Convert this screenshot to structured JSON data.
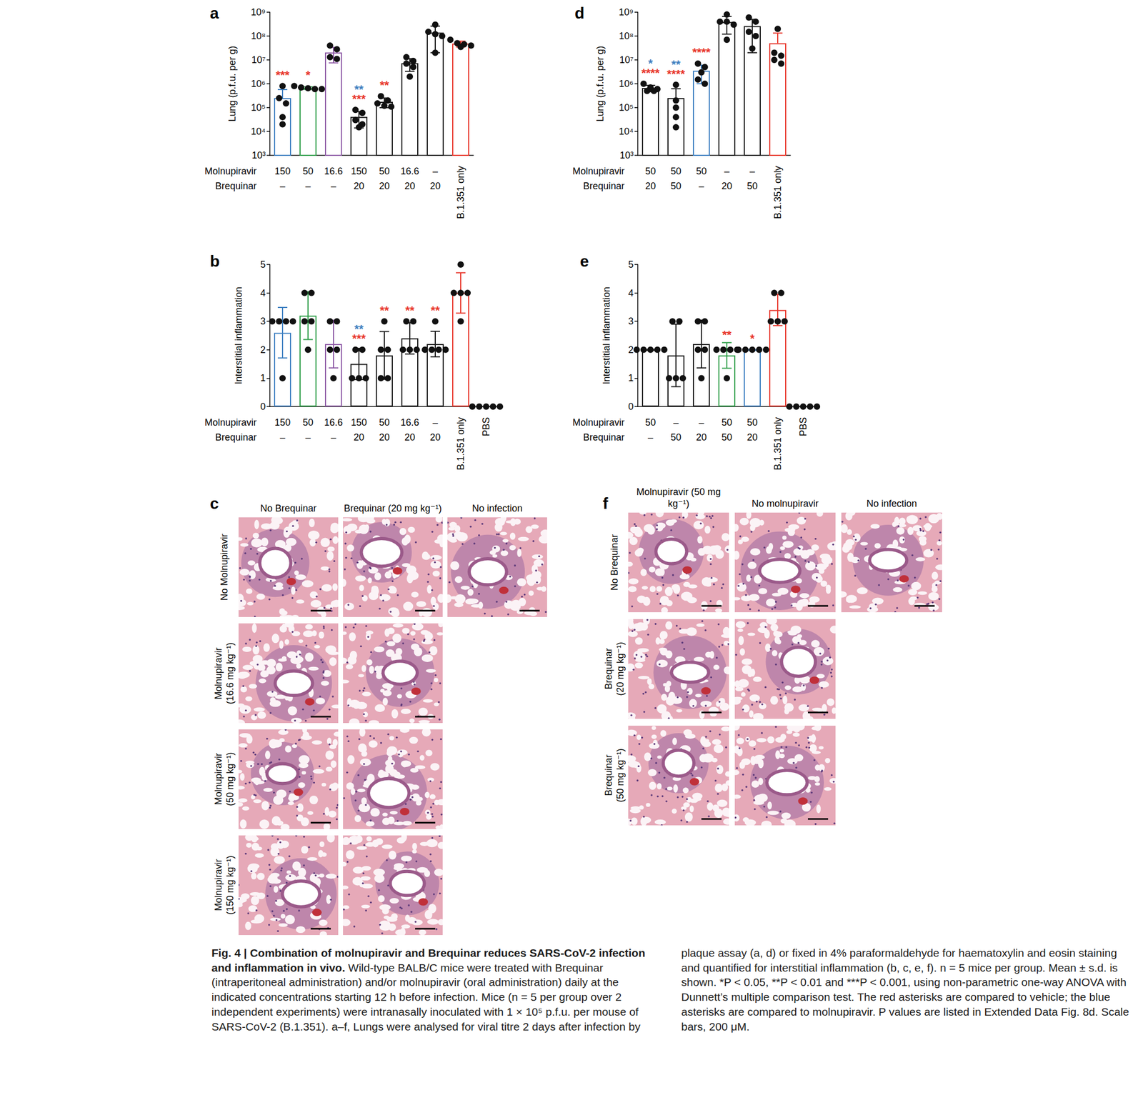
{
  "chart_data": [
    {
      "panel": "a",
      "type": "bar",
      "ylabel": "Lung (p.f.u. per g)",
      "log": "y",
      "ylim": [
        1000,
        1000000000
      ],
      "yticks": [
        {
          "value": 1000,
          "label": "10³"
        },
        {
          "value": 10000,
          "label": "10⁴"
        },
        {
          "value": 100000,
          "label": "10⁵"
        },
        {
          "value": 1000000,
          "label": "10⁶"
        },
        {
          "value": 10000000,
          "label": "10⁷"
        },
        {
          "value": 100000000,
          "label": "10⁸"
        },
        {
          "value": 1000000000,
          "label": "10⁹"
        }
      ],
      "row_labels": [
        "Molnupiravir",
        "Brequinar"
      ],
      "categories": [
        [
          "150",
          "–"
        ],
        [
          "50",
          "–"
        ],
        [
          "16.6",
          "–"
        ],
        [
          "150",
          "20"
        ],
        [
          "50",
          "20"
        ],
        [
          "16.6",
          "20"
        ],
        [
          "–",
          "20"
        ],
        [
          "B.1.351 only"
        ]
      ],
      "values": [
        250000,
        660000,
        20500000,
        41000,
        176000,
        7300000,
        140000000,
        48000000
      ],
      "errors": [
        320000,
        80000,
        13000000,
        27000,
        77000,
        4000000,
        120000000,
        13000000
      ],
      "points": [
        [
          800000,
          250000,
          150000,
          40000,
          20000
        ],
        [
          800000,
          700000,
          650000,
          600000,
          600000
        ],
        [
          40000000,
          28000000,
          13000000,
          11000000
        ],
        [
          80000,
          60000,
          30000,
          20000,
          15000
        ],
        [
          300000,
          200000,
          150000,
          120000,
          110000
        ],
        [
          13000000,
          9000000,
          7000000,
          5000000,
          2000000
        ],
        [
          300000000,
          150000000,
          120000000,
          100000000,
          20000000
        ],
        [
          70000000,
          50000000,
          45000000,
          40000000,
          35000000
        ]
      ],
      "colors": [
        "#3d7fc1",
        "#2e9e48",
        "#8e5ba6",
        "#1a1a1a",
        "#1a1a1a",
        "#1a1a1a",
        "#1a1a1a",
        "#e8352a"
      ],
      "annotations": [
        [
          {
            "text": "***",
            "color": "#e8352a"
          }
        ],
        [
          {
            "text": "*",
            "color": "#e8352a"
          }
        ],
        [],
        [
          {
            "text": "**",
            "color": "#3f7fbf"
          },
          {
            "text": "***",
            "color": "#e8352a"
          }
        ],
        [
          {
            "text": "**",
            "color": "#e8352a"
          }
        ],
        [],
        [],
        []
      ]
    },
    {
      "panel": "b",
      "type": "bar",
      "ylabel": "Interstitial inflammation",
      "ylim": [
        0,
        5
      ],
      "yticks": [
        0,
        1,
        2,
        3,
        4,
        5
      ],
      "row_labels": [
        "Molnupiravir",
        "Brequinar"
      ],
      "categories": [
        [
          "150",
          "–"
        ],
        [
          "50",
          "–"
        ],
        [
          "16.6",
          "–"
        ],
        [
          "150",
          "20"
        ],
        [
          "50",
          "20"
        ],
        [
          "16.6",
          "20"
        ],
        [
          "–",
          "20"
        ],
        [
          "B.1.351 only"
        ],
        [
          "PBS"
        ]
      ],
      "values": [
        2.6,
        3.2,
        2.2,
        1.5,
        1.8,
        2.4,
        2.2,
        4,
        0
      ],
      "errors": [
        0.89,
        0.84,
        0.84,
        0.55,
        0.84,
        0.55,
        0.45,
        0.71,
        0
      ],
      "points": [
        [
          3,
          3,
          3,
          3,
          1
        ],
        [
          4,
          4,
          3,
          3,
          2
        ],
        [
          3,
          3,
          2,
          2,
          1
        ],
        [
          2,
          2,
          1,
          1,
          1
        ],
        [
          3,
          2,
          2,
          1,
          1
        ],
        [
          3,
          3,
          2,
          2,
          2
        ],
        [
          3,
          2,
          2,
          2,
          2
        ],
        [
          5,
          4,
          4,
          4,
          3
        ],
        [
          0,
          0,
          0,
          0,
          0
        ]
      ],
      "colors": [
        "#3d7fc1",
        "#2e9e48",
        "#8e5ba6",
        "#1a1a1a",
        "#1a1a1a",
        "#1a1a1a",
        "#1a1a1a",
        "#e8352a",
        "#1a1a1a"
      ],
      "annotations": [
        [],
        [],
        [],
        [
          {
            "text": "**",
            "color": "#3f7fbf"
          },
          {
            "text": "***",
            "color": "#e8352a"
          }
        ],
        [
          {
            "text": "**",
            "color": "#e8352a"
          }
        ],
        [
          {
            "text": "**",
            "color": "#e8352a"
          }
        ],
        [
          {
            "text": "**",
            "color": "#e8352a"
          }
        ],
        [],
        []
      ]
    },
    {
      "panel": "d",
      "type": "bar",
      "ylabel": "Lung (p.f.u. per g)",
      "log": "y",
      "ylim": [
        1000,
        1000000000
      ],
      "yticks": [
        {
          "value": 1000,
          "label": "10³"
        },
        {
          "value": 10000,
          "label": "10⁴"
        },
        {
          "value": 100000,
          "label": "10⁵"
        },
        {
          "value": 1000000,
          "label": "10⁶"
        },
        {
          "value": 10000000,
          "label": "10⁷"
        },
        {
          "value": 100000000,
          "label": "10⁸"
        },
        {
          "value": 1000000000,
          "label": "10⁹"
        }
      ],
      "row_labels": [
        "Molnupiravir",
        "Brequinar"
      ],
      "categories": [
        [
          "50",
          "20"
        ],
        [
          "50",
          "50"
        ],
        [
          "50",
          "–"
        ],
        [
          "–",
          "20"
        ],
        [
          "–",
          "50"
        ],
        [
          "B.1.351 only"
        ]
      ],
      "values": [
        660000,
        250000,
        3500000,
        390000000,
        260000000,
        50000000
      ],
      "errors": [
        200000,
        370000,
        2500000,
        270000000,
        240000000,
        83000000
      ],
      "points": [
        [
          1000000,
          700000,
          600000,
          500000,
          500000
        ],
        [
          900000,
          200000,
          100000,
          40000,
          15000
        ],
        [
          7000000,
          5000000,
          3000000,
          1500000,
          1000000
        ],
        [
          800000000,
          400000000,
          400000000,
          300000000,
          70000000
        ],
        [
          600000000,
          400000000,
          150000000,
          100000000,
          30000000
        ],
        [
          200000000,
          20000000,
          15000000,
          10000000,
          7000000
        ]
      ],
      "colors": [
        "#1a1a1a",
        "#1a1a1a",
        "#3d7fc1",
        "#1a1a1a",
        "#1a1a1a",
        "#e8352a"
      ],
      "annotations": [
        [
          {
            "text": "*",
            "color": "#3f7fbf"
          },
          {
            "text": "****",
            "color": "#e8352a"
          }
        ],
        [
          {
            "text": "**",
            "color": "#3f7fbf"
          },
          {
            "text": "****",
            "color": "#e8352a"
          }
        ],
        [
          {
            "text": "****",
            "color": "#e8352a"
          }
        ],
        [],
        [],
        []
      ]
    },
    {
      "panel": "e",
      "type": "bar",
      "ylabel": "Interstitial inflammation",
      "ylim": [
        0,
        5
      ],
      "yticks": [
        0,
        1,
        2,
        3,
        4,
        5
      ],
      "row_labels": [
        "Molnupiravir",
        "Brequinar"
      ],
      "categories": [
        [
          "50",
          "–"
        ],
        [
          "–",
          "50"
        ],
        [
          "–",
          "20"
        ],
        [
          "50",
          "50"
        ],
        [
          "50",
          "20"
        ],
        [
          "B.1.351 only"
        ],
        [
          "PBS"
        ]
      ],
      "values": [
        2,
        1.8,
        2.2,
        1.8,
        2,
        3.4,
        0
      ],
      "errors": [
        0,
        1.1,
        0.84,
        0.45,
        0,
        0.55,
        0
      ],
      "points": [
        [
          2,
          2,
          2,
          2,
          2
        ],
        [
          3,
          3,
          1,
          1,
          1
        ],
        [
          3,
          3,
          2,
          2,
          1
        ],
        [
          2,
          2,
          2,
          2,
          1
        ],
        [
          2,
          2,
          2,
          2,
          2
        ],
        [
          4,
          4,
          3,
          3,
          3
        ],
        [
          0,
          0,
          0,
          0,
          0
        ]
      ],
      "colors": [
        "#1a1a1a",
        "#1a1a1a",
        "#1a1a1a",
        "#2e9e48",
        "#3d7fc1",
        "#e8352a",
        "#1a1a1a"
      ],
      "annotations": [
        [],
        [],
        [],
        [
          {
            "text": "**",
            "color": "#e8352a"
          }
        ],
        [
          {
            "text": "*",
            "color": "#e8352a"
          }
        ],
        [],
        []
      ]
    }
  ],
  "histology": [
    {
      "panel": "c",
      "columns": [
        "No Brequinar",
        "Brequinar (20 mg kg⁻¹)",
        "No infection"
      ],
      "rows": [
        {
          "label": "No Molnupiravir",
          "images": 3
        },
        {
          "label": "Molnupiravir (16.6 mg kg⁻¹)",
          "images": 2
        },
        {
          "label": "Molnupiravir (50 mg kg⁻¹)",
          "images": 2
        },
        {
          "label": "Molnupiravir (150 mg kg⁻¹)",
          "images": 2
        }
      ]
    },
    {
      "panel": "f",
      "columns": [
        "Molnupiravir (50 mg kg⁻¹)",
        "No molnupiravir",
        "No infection"
      ],
      "rows": [
        {
          "label": "No Brequinar",
          "images": 3
        },
        {
          "label": "Brequinar (20 mg kg⁻¹)",
          "images": 2
        },
        {
          "label": "Brequinar (50 mg kg⁻¹)",
          "images": 2
        }
      ]
    }
  ],
  "caption": {
    "title": "Fig. 4 | Combination of molnupiravir and Brequinar reduces SARS-CoV-2 infection and inflammation in vivo.",
    "text": "Wild-type BALB/C mice were treated with Brequinar (intraperitoneal administration) and/or molnupiravir (oral administration) daily at the indicated concentrations starting 12 h before infection. Mice (n = 5 per group over 2 independent experiments) were intranasally inoculated with 1 × 10⁵ p.f.u. per mouse of SARS-CoV-2 (B.1.351). a–f, Lungs were analysed for viral titre 2 days after infection by plaque assay (a, d) or fixed in 4% paraformaldehyde for haematoxylin and eosin staining and quantified for interstitial inflammation (b, c, e, f). n = 5 mice per group. Mean ± s.d. is shown. *P < 0.05, **P < 0.01 and ***P < 0.001, using non-parametric one-way ANOVA with Dunnett’s multiple comparison test. The red asterisks are compared to vehicle; the blue asterisks are compared to molnupiravir. P values are listed in Extended Data Fig. 8d. Scale bars, 200 μM."
  }
}
